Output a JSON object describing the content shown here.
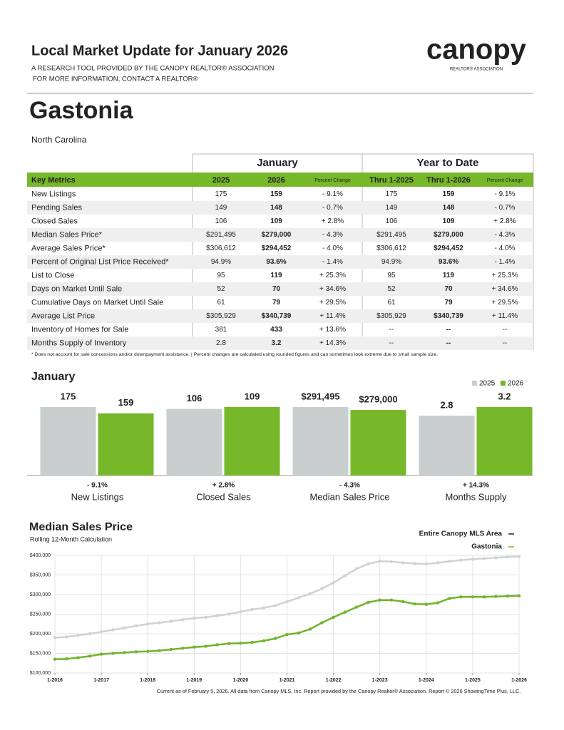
{
  "header": {
    "title": "Local Market Update for January 2026",
    "subtitle_lines": [
      "A RESEARCH TOOL PROVIDED BY THE CANOPY REALTOR® ASSOCIATION",
      "FOR MORE INFORMATION, CONTACT A REALTOR®"
    ],
    "logo": "canopy",
    "logo_tagline": "REALTOR® ASSOCIATION",
    "area": "Gastonia",
    "state": "North Carolina"
  },
  "table": {
    "groups": [
      "January",
      "Year to Date"
    ],
    "header": [
      "Key Metrics",
      "2025",
      "2026",
      "Percent Change",
      "Thru 1-2025",
      "Thru 1-2026",
      "Percent Change"
    ],
    "rows": [
      [
        "New Listings",
        "175",
        "159",
        "- 9.1%",
        "175",
        "159",
        "- 9.1%"
      ],
      [
        "Pending Sales",
        "149",
        "148",
        "- 0.7%",
        "149",
        "148",
        "- 0.7%"
      ],
      [
        "Closed Sales",
        "106",
        "109",
        "+ 2.8%",
        "106",
        "109",
        "+ 2.8%"
      ],
      [
        "Median Sales Price*",
        "$291,495",
        "$279,000",
        "- 4.3%",
        "$291,495",
        "$279,000",
        "- 4.3%"
      ],
      [
        "Average Sales Price*",
        "$306,612",
        "$294,452",
        "- 4.0%",
        "$306,612",
        "$294,452",
        "- 4.0%"
      ],
      [
        "Percent of Original List Price Received*",
        "94.9%",
        "93.6%",
        "- 1.4%",
        "94.9%",
        "93.6%",
        "- 1.4%"
      ],
      [
        "List to Close",
        "95",
        "119",
        "+ 25.3%",
        "95",
        "119",
        "+ 25.3%"
      ],
      [
        "Days on Market Until Sale",
        "52",
        "70",
        "+ 34.6%",
        "52",
        "70",
        "+ 34.6%"
      ],
      [
        "Cumulative Days on Market Until Sale",
        "61",
        "79",
        "+ 29.5%",
        "61",
        "79",
        "+ 29.5%"
      ],
      [
        "Average List Price",
        "$305,929",
        "$340,739",
        "+ 11.4%",
        "$305,929",
        "$340,739",
        "+ 11.4%"
      ],
      [
        "Inventory of Homes for Sale",
        "381",
        "433",
        "+ 13.6%",
        "--",
        "--",
        "--"
      ],
      [
        "Months Supply of Inventory",
        "2.8",
        "3.2",
        "+ 14.3%",
        "--",
        "--",
        "--"
      ]
    ],
    "footnote": "* Does not account for sale concessions and/or downpayment assistance.  |  Percent changes are calculated using rounded figures and can sometimes look extreme due to small sample size."
  },
  "bar_chart": {
    "type": "bar",
    "title": "January",
    "categories": [
      "New Listings",
      "Closed Sales",
      "Median Sales Price",
      "Months Supply"
    ],
    "series": [
      {
        "name": "2025",
        "color": "#c9cfce",
        "values": [
          175,
          106,
          291495,
          2.8
        ],
        "value_labels": [
          "175",
          "106",
          "$291,495",
          "2.8"
        ]
      },
      {
        "name": "2026",
        "color": "#76b82a",
        "values": [
          159,
          109,
          279000,
          3.2
        ],
        "value_labels": [
          "159",
          "109",
          "$279,000",
          "3.2"
        ]
      }
    ],
    "change_labels": [
      "- 9.1%",
      "+ 2.8%",
      "- 4.3%",
      "+ 14.3%"
    ]
  },
  "line_chart": {
    "type": "line",
    "title": "Median Sales Price",
    "subtitle": "Rolling 12-Month Calculation",
    "x": [
      "1-2016",
      "4-2016",
      "7-2016",
      "10-2016",
      "1-2017",
      "4-2017",
      "7-2017",
      "10-2017",
      "1-2018",
      "4-2018",
      "7-2018",
      "10-2018",
      "1-2019",
      "4-2019",
      "7-2019",
      "10-2019",
      "1-2020",
      "4-2020",
      "7-2020",
      "10-2020",
      "1-2021",
      "4-2021",
      "7-2021",
      "10-2021",
      "1-2022",
      "4-2022",
      "7-2022",
      "10-2022",
      "1-2023",
      "4-2023",
      "7-2023",
      "10-2023",
      "1-2024",
      "4-2024",
      "7-2024",
      "10-2024",
      "1-2025",
      "4-2025",
      "7-2025",
      "10-2025",
      "1-2026"
    ],
    "series": [
      {
        "name": "Entire Canopy MLS Area",
        "color": "#cfd3d2",
        "values": [
          190000,
          192000,
          196000,
          200000,
          205000,
          210000,
          215000,
          220000,
          225000,
          228000,
          232000,
          236000,
          240000,
          242000,
          246000,
          250000,
          256000,
          262000,
          266000,
          272000,
          282000,
          292000,
          302000,
          315000,
          330000,
          348000,
          366000,
          378000,
          385000,
          384000,
          381000,
          379000,
          378000,
          381000,
          385000,
          388000,
          390000,
          392000,
          394000,
          396000,
          397000
        ]
      },
      {
        "name": "Gastonia",
        "color": "#6fb52c",
        "values": [
          135000,
          136000,
          139000,
          143000,
          148000,
          150000,
          152000,
          154000,
          155000,
          157000,
          160000,
          163000,
          166000,
          168000,
          172000,
          175000,
          176000,
          178000,
          182000,
          188000,
          198000,
          202000,
          212000,
          228000,
          242000,
          255000,
          268000,
          280000,
          286000,
          286000,
          282000,
          276000,
          275000,
          279000,
          290000,
          294000,
          294000,
          294000,
          295000,
          296000,
          297000
        ]
      }
    ],
    "ylim": [
      100000,
      400000
    ],
    "yticks": [
      {
        "value": 100000,
        "label": "$100,000"
      },
      {
        "value": 150000,
        "label": "$150,000"
      },
      {
        "value": 200000,
        "label": "$200,000"
      },
      {
        "value": 250000,
        "label": "$250,000"
      },
      {
        "value": 300000,
        "label": "$300,000"
      },
      {
        "value": 350000,
        "label": "$350,000"
      },
      {
        "value": 400000,
        "label": "$400,000"
      }
    ],
    "xticks": [
      "1-2016",
      "1-2017",
      "1-2018",
      "1-2019",
      "1-2020",
      "1-2021",
      "1-2022",
      "1-2023",
      "1-2024",
      "1-2025",
      "1-2026"
    ],
    "grid": true
  },
  "footer": "Current as of February 5, 2026. All data from Canopy MLS, Inc. Report provided by the Canopy Realtor® Association. Report © 2026 ShowingTime Plus, LLC."
}
